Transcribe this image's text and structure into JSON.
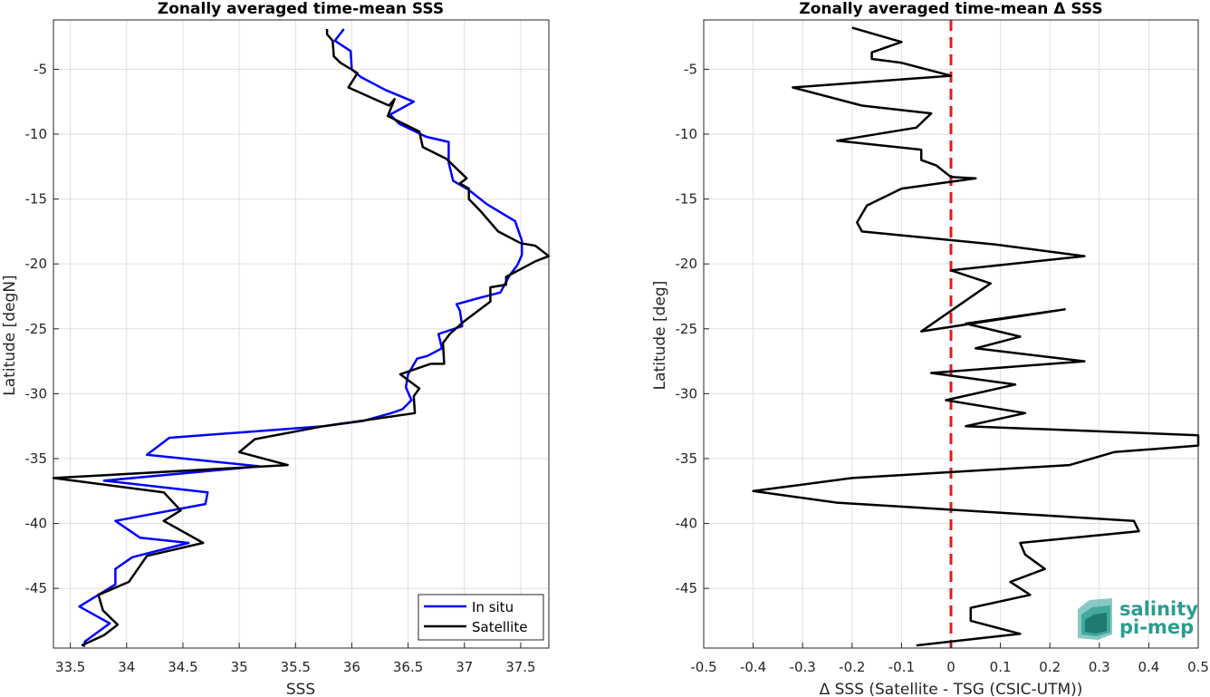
{
  "chart_data": [
    {
      "type": "line",
      "title": "Zonally averaged time-mean SSS",
      "xlabel": "SSS",
      "ylabel": "Latitude [degN]",
      "xlim": [
        33.35,
        37.75
      ],
      "ylim": [
        -49.6,
        -1.2
      ],
      "xticks": [
        33.5,
        34,
        34.5,
        35,
        35.5,
        36,
        36.5,
        37,
        37.5
      ],
      "xtick_labels": [
        "33.5",
        "34",
        "34.5",
        "35",
        "35.5",
        "36",
        "36.5",
        "37",
        "37.5"
      ],
      "yticks": [
        -5,
        -10,
        -15,
        -20,
        -25,
        -30,
        -35,
        -40,
        -45
      ],
      "ytick_labels": [
        "-5",
        "-10",
        "-15",
        "-20",
        "-25",
        "-30",
        "-35",
        "-40",
        "-45"
      ],
      "grid": true,
      "legend_position": "bottom-right",
      "series": [
        {
          "name": "In situ",
          "color": "#0000ff",
          "points": [
            [
              35.93,
              -1.9
            ],
            [
              35.85,
              -2.8
            ],
            [
              35.99,
              -3.6
            ],
            [
              36.0,
              -5.0
            ],
            [
              36.08,
              -5.6
            ],
            [
              36.3,
              -6.6
            ],
            [
              36.55,
              -7.5
            ],
            [
              36.34,
              -8.5
            ],
            [
              36.42,
              -9.2
            ],
            [
              36.66,
              -10.2
            ],
            [
              36.86,
              -10.6
            ],
            [
              36.86,
              -12.2
            ],
            [
              36.9,
              -13.6
            ],
            [
              37.04,
              -14.3
            ],
            [
              37.2,
              -15.4
            ],
            [
              37.45,
              -16.7
            ],
            [
              37.51,
              -18.2
            ],
            [
              37.51,
              -19.3
            ],
            [
              37.47,
              -20.1
            ],
            [
              37.4,
              -20.9
            ],
            [
              37.32,
              -22.2
            ],
            [
              37.14,
              -22.6
            ],
            [
              36.93,
              -23.1
            ],
            [
              36.96,
              -23.6
            ],
            [
              36.98,
              -24.8
            ],
            [
              36.77,
              -25.4
            ],
            [
              36.8,
              -26.5
            ],
            [
              36.67,
              -27.1
            ],
            [
              36.58,
              -27.3
            ],
            [
              36.5,
              -28.5
            ],
            [
              36.48,
              -29.5
            ],
            [
              36.53,
              -30.5
            ],
            [
              36.45,
              -31.2
            ],
            [
              36.35,
              -31.5
            ],
            [
              36.1,
              -32.1
            ],
            [
              35.75,
              -32.5
            ],
            [
              34.38,
              -33.4
            ],
            [
              34.18,
              -34.7
            ],
            [
              35.18,
              -35.6
            ],
            [
              33.8,
              -36.7
            ],
            [
              34.72,
              -37.6
            ],
            [
              34.7,
              -38.5
            ],
            [
              33.9,
              -39.8
            ],
            [
              34.12,
              -41.1
            ],
            [
              34.55,
              -41.5
            ],
            [
              34.05,
              -42.6
            ],
            [
              33.9,
              -43.5
            ],
            [
              33.9,
              -44.7
            ],
            [
              33.58,
              -46.4
            ],
            [
              33.85,
              -47.7
            ],
            [
              33.63,
              -49.1
            ],
            [
              33.62,
              -49.5
            ]
          ]
        },
        {
          "name": "Satellite",
          "color": "#000000",
          "points": [
            [
              35.78,
              -1.9
            ],
            [
              35.78,
              -2.3
            ],
            [
              35.83,
              -2.8
            ],
            [
              35.84,
              -4.0
            ],
            [
              35.9,
              -4.5
            ],
            [
              36.05,
              -5.3
            ],
            [
              35.97,
              -6.4
            ],
            [
              36.33,
              -7.8
            ],
            [
              36.38,
              -7.3
            ],
            [
              36.32,
              -8.6
            ],
            [
              36.6,
              -9.8
            ],
            [
              36.63,
              -11.0
            ],
            [
              36.84,
              -11.9
            ],
            [
              37.02,
              -13.4
            ],
            [
              36.96,
              -13.8
            ],
            [
              37.04,
              -14.2
            ],
            [
              37.04,
              -15.0
            ],
            [
              37.14,
              -15.9
            ],
            [
              37.3,
              -17.5
            ],
            [
              37.5,
              -18.4
            ],
            [
              37.63,
              -18.6
            ],
            [
              37.75,
              -19.4
            ],
            [
              37.63,
              -19.8
            ],
            [
              37.37,
              -21.0
            ],
            [
              37.37,
              -21.6
            ],
            [
              37.23,
              -21.8
            ],
            [
              37.23,
              -22.9
            ],
            [
              37.0,
              -24.4
            ],
            [
              36.87,
              -25.4
            ],
            [
              36.81,
              -26.1
            ],
            [
              36.82,
              -27.7
            ],
            [
              36.7,
              -27.7
            ],
            [
              36.43,
              -28.5
            ],
            [
              36.6,
              -29.6
            ],
            [
              36.55,
              -30.2
            ],
            [
              36.56,
              -31.5
            ],
            [
              35.75,
              -32.5
            ],
            [
              35.14,
              -33.5
            ],
            [
              35.0,
              -34.5
            ],
            [
              35.43,
              -35.5
            ],
            [
              33.35,
              -36.5
            ],
            [
              34.33,
              -37.6
            ],
            [
              34.48,
              -39.0
            ],
            [
              34.33,
              -39.8
            ],
            [
              34.68,
              -41.5
            ],
            [
              34.18,
              -42.5
            ],
            [
              34.02,
              -44.5
            ],
            [
              33.75,
              -45.5
            ],
            [
              33.79,
              -46.7
            ],
            [
              33.92,
              -47.8
            ],
            [
              33.8,
              -48.6
            ],
            [
              33.6,
              -49.4
            ]
          ]
        }
      ]
    },
    {
      "type": "line",
      "title": "Zonally averaged time-mean Δ SSS",
      "xlabel": "Δ SSS (Satellite - TSG (CSIC-UTM))",
      "ylabel": "Latitude [deg]",
      "xlim": [
        -0.5,
        0.5
      ],
      "ylim": [
        -49.6,
        -1.2
      ],
      "xticks": [
        -0.5,
        -0.4,
        -0.3,
        -0.2,
        -0.1,
        0,
        0.1,
        0.2,
        0.3,
        0.4,
        0.5
      ],
      "xtick_labels": [
        "-0.5",
        "-0.4",
        "-0.3",
        "-0.2",
        "-0.1",
        "0",
        "0.1",
        "0.2",
        "0.3",
        "0.4",
        "0.5"
      ],
      "yticks": [
        -5,
        -10,
        -15,
        -20,
        -25,
        -30,
        -35,
        -40,
        -45
      ],
      "ytick_labels": [
        "-5",
        "-10",
        "-15",
        "-20",
        "-25",
        "-30",
        "-35",
        "-40",
        "-45"
      ],
      "grid": true,
      "reference_line": {
        "x": 0,
        "color": "#e41a1c",
        "style": "dashed"
      },
      "series": [
        {
          "color": "#000000",
          "points": [
            [
              -0.2,
              -1.8
            ],
            [
              -0.1,
              -2.9
            ],
            [
              -0.16,
              -3.7
            ],
            [
              -0.16,
              -4.2
            ],
            [
              -0.1,
              -4.5
            ],
            [
              0.0,
              -5.5
            ],
            [
              -0.32,
              -6.4
            ],
            [
              -0.18,
              -7.8
            ],
            [
              -0.04,
              -8.4
            ],
            [
              -0.07,
              -9.5
            ],
            [
              -0.23,
              -10.5
            ],
            [
              -0.06,
              -11.2
            ],
            [
              -0.06,
              -12.0
            ],
            [
              -0.03,
              -12.4
            ],
            [
              0.0,
              -13.3
            ],
            [
              0.05,
              -13.4
            ],
            [
              -0.1,
              -14.2
            ],
            [
              -0.17,
              -15.5
            ],
            [
              -0.19,
              -16.8
            ],
            [
              -0.18,
              -17.5
            ],
            [
              0.09,
              -18.5
            ],
            [
              0.27,
              -19.4
            ],
            [
              0.0,
              -20.5
            ],
            [
              0.08,
              -21.5
            ],
            [
              -0.06,
              -25.2
            ],
            [
              0.23,
              -23.5
            ],
            [
              0.03,
              -24.6
            ],
            [
              0.14,
              -25.6
            ],
            [
              0.05,
              -26.5
            ],
            [
              0.27,
              -27.5
            ],
            [
              -0.04,
              -28.4
            ],
            [
              0.13,
              -29.3
            ],
            [
              -0.01,
              -30.5
            ],
            [
              0.15,
              -31.5
            ],
            [
              0.03,
              -32.5
            ],
            [
              0.5,
              -33.2
            ],
            [
              0.5,
              -34.0
            ],
            [
              0.33,
              -34.5
            ],
            [
              0.24,
              -35.5
            ],
            [
              -0.2,
              -36.5
            ],
            [
              -0.4,
              -37.5
            ],
            [
              -0.23,
              -38.4
            ],
            [
              0.37,
              -39.8
            ],
            [
              0.38,
              -40.6
            ],
            [
              0.14,
              -41.5
            ],
            [
              0.15,
              -42.4
            ],
            [
              0.19,
              -43.5
            ],
            [
              0.12,
              -44.5
            ],
            [
              0.16,
              -45.5
            ],
            [
              0.04,
              -46.5
            ],
            [
              0.04,
              -47.5
            ],
            [
              0.14,
              -48.5
            ],
            [
              -0.07,
              -49.4
            ]
          ]
        }
      ]
    }
  ],
  "legend": [
    {
      "label": "In situ",
      "color": "#0000ff"
    },
    {
      "label": "Satellite",
      "color": "#000000"
    }
  ],
  "logo": {
    "line1": "salinity",
    "line2": "pi-mep",
    "color": "#2a9d8f"
  }
}
